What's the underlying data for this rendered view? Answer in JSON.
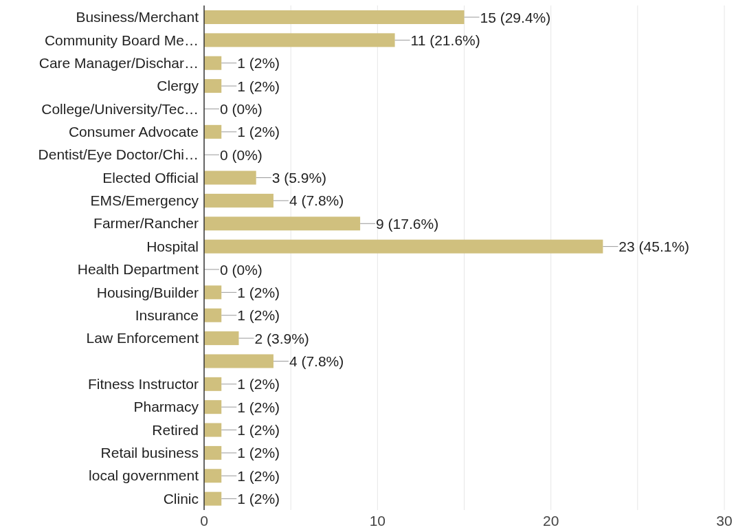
{
  "chart_data": {
    "type": "bar",
    "orientation": "horizontal",
    "categories": [
      "Business/Merchant",
      "Community Board Me…",
      "Care Manager/Dischar…",
      "Clergy",
      "College/University/Tec…",
      "Consumer Advocate",
      "Dentist/Eye Doctor/Chi…",
      "Elected Official",
      "EMS/Emergency",
      "Farmer/Rancher",
      "Hospital",
      "Health Department",
      "Housing/Builder",
      "Insurance",
      "Law Enforcement",
      null,
      "Fitness Instructor",
      "Pharmacy",
      "Retired",
      "Retail business",
      "local government",
      "Clinic"
    ],
    "values": [
      15,
      11,
      1,
      1,
      0,
      1,
      0,
      3,
      4,
      9,
      23,
      0,
      1,
      1,
      2,
      4,
      1,
      1,
      1,
      1,
      1,
      1
    ],
    "value_labels": [
      "15 (29.4%)",
      "11 (21.6%)",
      "1 (2%)",
      "1 (2%)",
      "0 (0%)",
      "1 (2%)",
      "0 (0%)",
      "3 (5.9%)",
      "4 (7.8%)",
      "9 (17.6%)",
      "23 (45.1%)",
      "0 (0%)",
      "1 (2%)",
      "1 (2%)",
      "2 (3.9%)",
      "4 (7.8%)",
      "1 (2%)",
      "1 (2%)",
      "1 (2%)",
      "1 (2%)",
      "1 (2%)",
      "1 (2%)"
    ],
    "color": "#d0c07e",
    "xlim": [
      0,
      30
    ],
    "xticks": [
      0,
      {
        "value": 5,
        "label": null
      },
      10,
      {
        "value": 15,
        "label": null
      },
      20,
      {
        "value": 25,
        "label": null
      },
      30
    ],
    "grid": "x"
  }
}
